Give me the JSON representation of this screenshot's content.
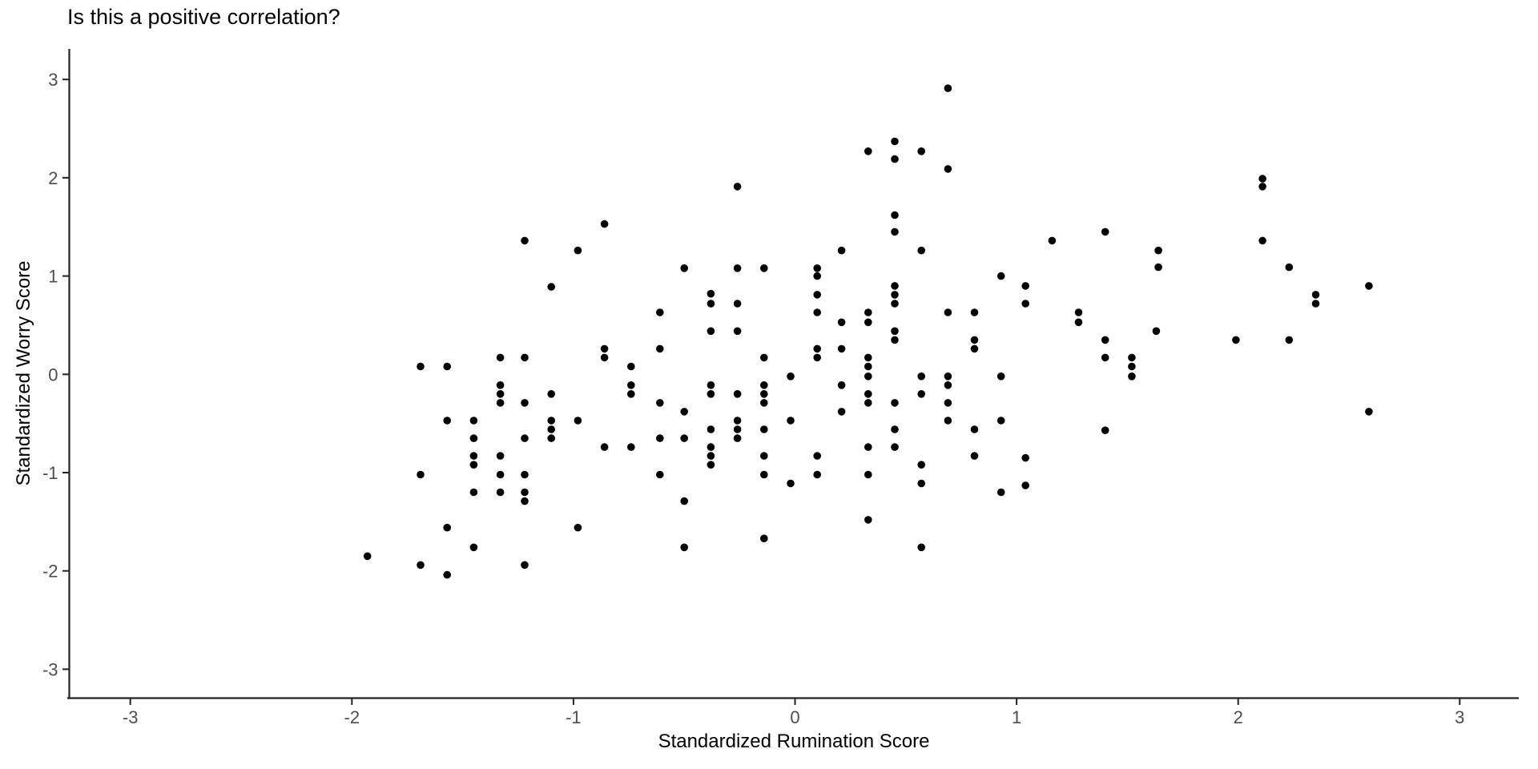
{
  "chart_data": {
    "type": "scatter",
    "title": "Is this a positive correlation?",
    "xlabel": "Standardized Rumination Score",
    "ylabel": "Standardized Worry Score",
    "xlim": [
      -3.28,
      3.27
    ],
    "ylim": [
      -3.29,
      3.3
    ],
    "x_ticks": [
      -3,
      -2,
      -1,
      0,
      1,
      2,
      3
    ],
    "y_ticks": [
      -3,
      -2,
      -1,
      0,
      1,
      2,
      3
    ],
    "grid": false,
    "legend": "none",
    "background_color": "#ffffff",
    "point_color": "#000000",
    "axis_line_color": "#222222",
    "tick_label_color": "#4d4d4d",
    "points": [
      [
        -1.22,
        1.36
      ],
      [
        -0.86,
        1.53
      ],
      [
        -0.98,
        1.26
      ],
      [
        -1.1,
        0.89
      ],
      [
        0.69,
        2.91
      ],
      [
        0.45,
        2.37
      ],
      [
        0.33,
        2.27
      ],
      [
        0.57,
        2.27
      ],
      [
        0.45,
        2.19
      ],
      [
        0.69,
        2.09
      ],
      [
        -0.26,
        1.91
      ],
      [
        0.45,
        1.62
      ],
      [
        0.45,
        1.45
      ],
      [
        0.21,
        1.26
      ],
      [
        0.57,
        1.26
      ],
      [
        -0.5,
        1.08
      ],
      [
        -0.26,
        1.08
      ],
      [
        -0.14,
        1.08
      ],
      [
        0.1,
        1.08
      ],
      [
        0.1,
        1.0
      ],
      [
        0.93,
        1.0
      ],
      [
        0.45,
        0.9
      ],
      [
        -0.38,
        0.82
      ],
      [
        0.1,
        0.81
      ],
      [
        0.45,
        0.81
      ],
      [
        -0.38,
        0.72
      ],
      [
        -0.26,
        0.72
      ],
      [
        0.45,
        0.72
      ],
      [
        -0.61,
        0.63
      ],
      [
        0.1,
        0.63
      ],
      [
        0.33,
        0.63
      ],
      [
        0.69,
        0.63
      ],
      [
        0.81,
        0.63
      ],
      [
        2.11,
        1.99
      ],
      [
        2.11,
        1.91
      ],
      [
        1.4,
        1.45
      ],
      [
        1.16,
        1.36
      ],
      [
        2.11,
        1.36
      ],
      [
        1.64,
        1.26
      ],
      [
        1.64,
        1.09
      ],
      [
        2.23,
        1.09
      ],
      [
        1.04,
        0.9
      ],
      [
        2.59,
        0.9
      ],
      [
        2.35,
        0.81
      ],
      [
        1.04,
        0.72
      ],
      [
        2.35,
        0.72
      ],
      [
        1.28,
        0.63
      ],
      [
        -0.86,
        0.26
      ],
      [
        -1.33,
        0.17
      ],
      [
        -1.22,
        0.17
      ],
      [
        -0.86,
        0.17
      ],
      [
        -1.69,
        0.08
      ],
      [
        -1.57,
        0.08
      ],
      [
        -0.74,
        0.08
      ],
      [
        -1.33,
        -0.11
      ],
      [
        -0.74,
        -0.11
      ],
      [
        -1.33,
        -0.2
      ],
      [
        -1.1,
        -0.2
      ],
      [
        -0.74,
        -0.2
      ],
      [
        -1.33,
        -0.29
      ],
      [
        -1.22,
        -0.29
      ],
      [
        -1.57,
        -0.47
      ],
      [
        -1.45,
        -0.47
      ],
      [
        -1.1,
        -0.47
      ],
      [
        -0.98,
        -0.47
      ],
      [
        -1.1,
        -0.56
      ],
      [
        -1.45,
        -0.65
      ],
      [
        -1.22,
        -0.65
      ],
      [
        -1.1,
        -0.65
      ],
      [
        -0.86,
        -0.74
      ],
      [
        -0.74,
        -0.74
      ],
      [
        -1.45,
        -0.83
      ],
      [
        -1.33,
        -0.83
      ],
      [
        -1.45,
        -0.92
      ],
      [
        -1.69,
        -1.02
      ],
      [
        -1.33,
        -1.02
      ],
      [
        -1.22,
        -1.02
      ],
      [
        -1.45,
        -1.2
      ],
      [
        -1.33,
        -1.2
      ],
      [
        -1.22,
        -1.2
      ],
      [
        -1.22,
        -1.29
      ],
      [
        -1.57,
        -1.56
      ],
      [
        -0.98,
        -1.56
      ],
      [
        -1.45,
        -1.76
      ],
      [
        -1.93,
        -1.85
      ],
      [
        -1.69,
        -1.94
      ],
      [
        -1.22,
        -1.94
      ],
      [
        -1.57,
        -2.04
      ],
      [
        0.21,
        0.53
      ],
      [
        0.33,
        0.53
      ],
      [
        -0.38,
        0.44
      ],
      [
        -0.26,
        0.44
      ],
      [
        0.45,
        0.44
      ],
      [
        0.45,
        0.35
      ],
      [
        0.81,
        0.35
      ],
      [
        -0.61,
        0.26
      ],
      [
        0.1,
        0.26
      ],
      [
        0.21,
        0.26
      ],
      [
        0.81,
        0.26
      ],
      [
        -0.14,
        0.17
      ],
      [
        0.1,
        0.17
      ],
      [
        0.33,
        0.17
      ],
      [
        0.33,
        0.08
      ],
      [
        -0.02,
        -0.02
      ],
      [
        0.33,
        -0.02
      ],
      [
        0.57,
        -0.02
      ],
      [
        0.69,
        -0.02
      ],
      [
        0.93,
        -0.02
      ],
      [
        -0.38,
        -0.11
      ],
      [
        -0.14,
        -0.11
      ],
      [
        0.21,
        -0.11
      ],
      [
        0.69,
        -0.11
      ],
      [
        -0.38,
        -0.2
      ],
      [
        -0.26,
        -0.2
      ],
      [
        -0.14,
        -0.2
      ],
      [
        0.33,
        -0.2
      ],
      [
        0.57,
        -0.2
      ],
      [
        -0.61,
        -0.29
      ],
      [
        -0.14,
        -0.29
      ],
      [
        0.33,
        -0.29
      ],
      [
        0.45,
        -0.29
      ],
      [
        0.69,
        -0.29
      ],
      [
        -0.5,
        -0.38
      ],
      [
        0.21,
        -0.38
      ],
      [
        -0.26,
        -0.47
      ],
      [
        -0.02,
        -0.47
      ],
      [
        0.69,
        -0.47
      ],
      [
        0.93,
        -0.47
      ],
      [
        -0.38,
        -0.56
      ],
      [
        -0.26,
        -0.56
      ],
      [
        -0.14,
        -0.56
      ],
      [
        0.45,
        -0.56
      ],
      [
        0.81,
        -0.56
      ],
      [
        -0.61,
        -0.65
      ],
      [
        -0.5,
        -0.65
      ],
      [
        -0.26,
        -0.65
      ],
      [
        -0.38,
        -0.74
      ],
      [
        0.33,
        -0.74
      ],
      [
        0.45,
        -0.74
      ],
      [
        -0.38,
        -0.83
      ],
      [
        -0.14,
        -0.83
      ],
      [
        0.1,
        -0.83
      ],
      [
        0.81,
        -0.83
      ],
      [
        -0.38,
        -0.92
      ],
      [
        0.57,
        -0.92
      ],
      [
        -0.61,
        -1.02
      ],
      [
        -0.14,
        -1.02
      ],
      [
        0.1,
        -1.02
      ],
      [
        0.33,
        -1.02
      ],
      [
        -0.02,
        -1.11
      ],
      [
        0.57,
        -1.11
      ],
      [
        0.93,
        -1.2
      ],
      [
        -0.5,
        -1.29
      ],
      [
        0.33,
        -1.48
      ],
      [
        -0.14,
        -1.67
      ],
      [
        -0.5,
        -1.76
      ],
      [
        0.57,
        -1.76
      ],
      [
        1.28,
        0.53
      ],
      [
        1.63,
        0.44
      ],
      [
        1.4,
        0.35
      ],
      [
        1.99,
        0.35
      ],
      [
        2.23,
        0.35
      ],
      [
        1.4,
        0.17
      ],
      [
        1.52,
        0.17
      ],
      [
        1.52,
        0.08
      ],
      [
        1.52,
        -0.02
      ],
      [
        2.59,
        -0.38
      ],
      [
        1.4,
        -0.57
      ],
      [
        1.04,
        -0.85
      ],
      [
        1.04,
        -1.13
      ]
    ]
  }
}
